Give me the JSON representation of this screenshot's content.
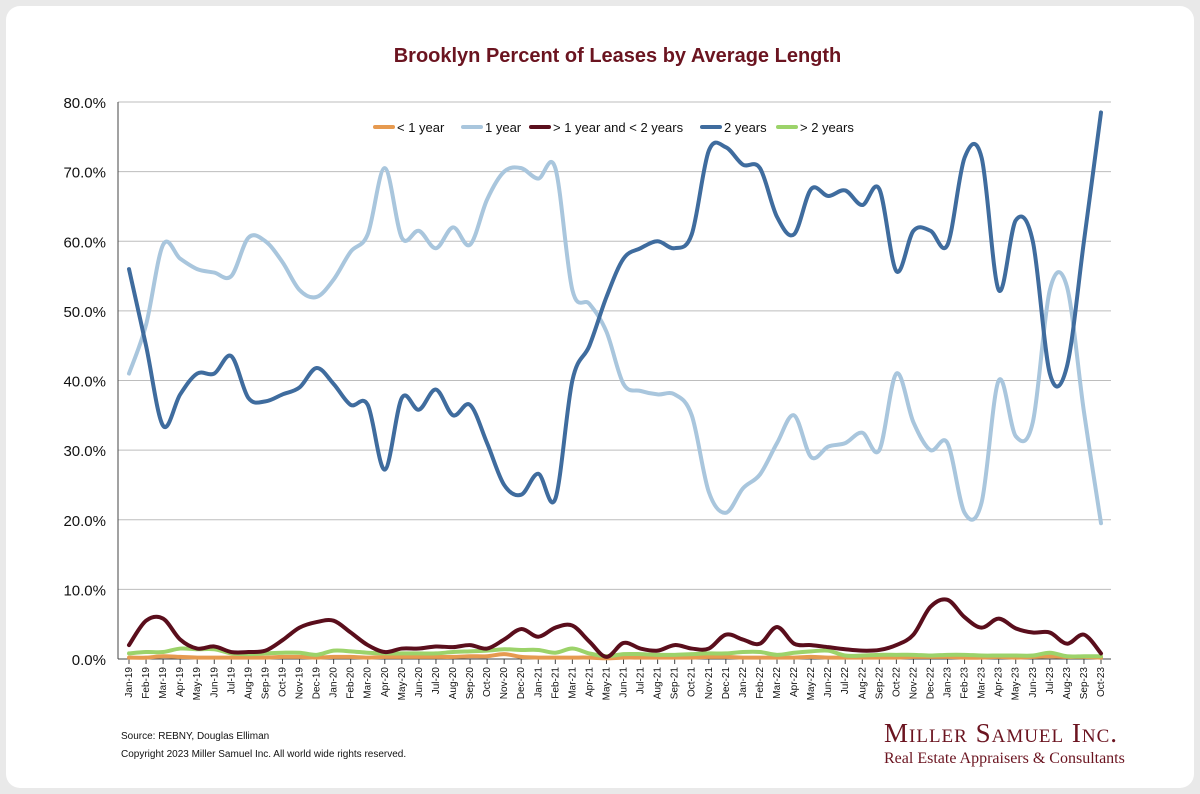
{
  "chart_data": {
    "type": "line",
    "title": "Brooklyn Percent of Leases by Average Length",
    "xlabel": "",
    "ylabel": "",
    "ylim": [
      0,
      80
    ],
    "yticks": [
      "0.0%",
      "10.0%",
      "20.0%",
      "30.0%",
      "40.0%",
      "50.0%",
      "60.0%",
      "70.0%",
      "80.0%"
    ],
    "grid": true,
    "legend_position": "top",
    "categories": [
      "Jan-19",
      "Feb-19",
      "Mar-19",
      "Apr-19",
      "May-19",
      "Jun-19",
      "Jul-19",
      "Aug-19",
      "Sep-19",
      "Oct-19",
      "Nov-19",
      "Dec-19",
      "Jan-20",
      "Feb-20",
      "Mar-20",
      "Apr-20",
      "May-20",
      "Jun-20",
      "Jul-20",
      "Aug-20",
      "Sep-20",
      "Oct-20",
      "Nov-20",
      "Dec-20",
      "Jan-21",
      "Feb-21",
      "Mar-21",
      "Apr-21",
      "May-21",
      "Jun-21",
      "Jul-21",
      "Aug-21",
      "Sep-21",
      "Oct-21",
      "Nov-21",
      "Dec-21",
      "Jan-22",
      "Feb-22",
      "Mar-22",
      "Apr-22",
      "May-22",
      "Jun-22",
      "Jul-22",
      "Aug-22",
      "Sep-22",
      "Oct-22",
      "Nov-22",
      "Dec-22",
      "Jan-23",
      "Feb-23",
      "Mar-23",
      "Apr-23",
      "May-23",
      "Jun-23",
      "Jul-23",
      "Aug-23",
      "Sep-23",
      "Oct-23"
    ],
    "series": [
      {
        "name": "< 1 year",
        "color": "#e69a50",
        "values": [
          0.2,
          0.2,
          0.4,
          0.3,
          0.2,
          0.2,
          0.2,
          0.2,
          0.2,
          0.3,
          0.3,
          0.2,
          0.3,
          0.3,
          0.2,
          0.3,
          0.3,
          0.3,
          0.3,
          0.3,
          0.4,
          0.4,
          0.7,
          0.3,
          0.2,
          0.2,
          0.2,
          0.2,
          0.1,
          0.2,
          0.2,
          0.2,
          0.2,
          0.2,
          0.3,
          0.3,
          0.2,
          0.2,
          0.2,
          0.2,
          0.3,
          0.2,
          0.2,
          0.2,
          0.2,
          0.2,
          0.3,
          0.3,
          0.3,
          0.2,
          0.2,
          0.3,
          0.2,
          0.3,
          0.4,
          0.3,
          0.3,
          0.2
        ]
      },
      {
        "name": "1 year",
        "color": "#a9c6dd",
        "values": [
          41,
          48,
          59.5,
          57.5,
          56,
          55.5,
          55,
          60.5,
          60,
          57,
          53,
          52,
          54.5,
          58.5,
          61,
          70.5,
          60.5,
          61.5,
          59,
          62,
          59.5,
          66,
          70,
          70.5,
          69,
          70.5,
          53,
          51,
          47,
          39.5,
          38.5,
          38,
          38,
          35,
          24,
          21,
          24.5,
          26.5,
          31,
          35,
          29,
          30.5,
          31,
          32.5,
          30,
          41,
          34,
          30,
          31,
          21,
          22.5,
          40,
          32,
          34,
          53,
          53.5,
          35.5,
          19.5
        ]
      },
      {
        "name": "> 1 year and < 2 years",
        "color": "#5a0e1c",
        "values": [
          2,
          5.5,
          5.8,
          2.8,
          1.5,
          1.8,
          1,
          1,
          1.2,
          2.7,
          4.5,
          5.3,
          5.5,
          3.8,
          2,
          1,
          1.5,
          1.5,
          1.8,
          1.7,
          2,
          1.5,
          2.8,
          4.3,
          3.2,
          4.5,
          4.8,
          2.5,
          0.3,
          2.3,
          1.5,
          1.2,
          2,
          1.5,
          1.5,
          3.5,
          2.8,
          2.2,
          4.6,
          2.2,
          2,
          1.7,
          1.4,
          1.2,
          1.3,
          2,
          3.5,
          7.5,
          8.5,
          6,
          4.5,
          5.8,
          4.4,
          3.8,
          3.8,
          2.2,
          3.5,
          0.8
        ]
      },
      {
        "name": "2 years",
        "color": "#3f6c9e",
        "values": [
          56,
          45,
          33.5,
          38,
          41,
          41,
          43.5,
          37.5,
          37,
          38,
          39,
          41.8,
          39.5,
          36.5,
          36.5,
          27.2,
          37.5,
          35.8,
          38.7,
          35,
          36.5,
          31,
          25,
          23.6,
          26.6,
          23,
          40,
          45,
          52,
          57.5,
          59,
          60,
          59,
          61,
          73,
          73.5,
          71,
          70.5,
          63.5,
          61,
          67.5,
          66.5,
          67.3,
          65.2,
          67.5,
          55.7,
          61.5,
          61.5,
          59.5,
          72,
          72,
          53,
          63,
          60,
          41,
          42,
          60,
          78.5
        ]
      },
      {
        "name": "> 2 years",
        "color": "#9cd36a",
        "values": [
          0.8,
          1,
          1,
          1.5,
          1.4,
          1.4,
          0.8,
          0.7,
          0.8,
          0.9,
          0.9,
          0.6,
          1.2,
          1.1,
          0.9,
          0.8,
          0.8,
          0.8,
          0.8,
          1,
          1.1,
          1.2,
          1.4,
          1.3,
          1.3,
          0.9,
          1.5,
          0.8,
          0.4,
          0.7,
          0.7,
          0.6,
          0.6,
          0.7,
          0.8,
          0.8,
          1,
          1,
          0.6,
          0.9,
          1.1,
          1.2,
          0.5,
          0.5,
          0.6,
          0.6,
          0.6,
          0.5,
          0.6,
          0.6,
          0.5,
          0.5,
          0.5,
          0.5,
          0.9,
          0.4,
          0.4,
          0.4
        ]
      }
    ]
  },
  "footer": {
    "source": "Source: REBNY, Douglas Elliman",
    "copyright": "Copyright 2023 Miller Samuel Inc.  All world wide rights reserved."
  },
  "brand": {
    "name": "Miller Samuel Inc.",
    "tagline": "Real Estate Appraisers & Consultants",
    "color": "#6b1420"
  }
}
